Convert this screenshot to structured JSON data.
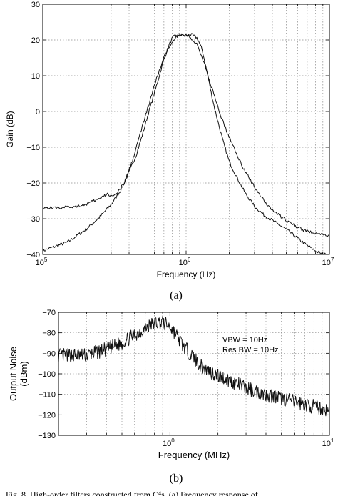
{
  "chart_data": [
    {
      "type": "line",
      "label": "(a)",
      "xlabel": "Frequency (Hz)",
      "ylabel": "Gain (dB)",
      "xscale": "log",
      "xlim": [
        100000,
        10000000
      ],
      "ylim": [
        -40,
        30
      ],
      "x_ticks": [
        {
          "value": 100000,
          "base": "10",
          "exp": "5"
        },
        {
          "value": 1000000,
          "base": "10",
          "exp": "6"
        },
        {
          "value": 10000000,
          "base": "10",
          "exp": "7"
        }
      ],
      "y_ticks": [
        {
          "value": -40,
          "label": "−40"
        },
        {
          "value": -30,
          "label": "−30"
        },
        {
          "value": -20,
          "label": "−20"
        },
        {
          "value": -10,
          "label": "−10"
        },
        {
          "value": 0,
          "label": "0"
        },
        {
          "value": 10,
          "label": "10"
        },
        {
          "value": 20,
          "label": "20"
        },
        {
          "value": 30,
          "label": "30"
        }
      ],
      "grid": true,
      "series": [
        {
          "points": [
            [
              100000,
              -39
            ],
            [
              150000,
              -36.5
            ],
            [
              200000,
              -33
            ],
            [
              250000,
              -29.5
            ],
            [
              300000,
              -26
            ],
            [
              350000,
              -22
            ],
            [
              400000,
              -17
            ],
            [
              450000,
              -12
            ],
            [
              500000,
              -6
            ],
            [
              550000,
              0
            ],
            [
              600000,
              5
            ],
            [
              650000,
              10
            ],
            [
              700000,
              14.5
            ],
            [
              750000,
              18
            ],
            [
              800000,
              20.5
            ],
            [
              850000,
              21.3
            ],
            [
              900000,
              21.5
            ],
            [
              1000000,
              21.2
            ],
            [
              1100000,
              21.4
            ],
            [
              1200000,
              20.5
            ],
            [
              1300000,
              17
            ],
            [
              1400000,
              11
            ],
            [
              1500000,
              5
            ],
            [
              1600000,
              0
            ],
            [
              1800000,
              -8
            ],
            [
              2000000,
              -14
            ],
            [
              2300000,
              -19
            ],
            [
              2600000,
              -23
            ],
            [
              3000000,
              -26.5
            ],
            [
              3500000,
              -29
            ],
            [
              4000000,
              -30.5
            ],
            [
              5000000,
              -33
            ],
            [
              6000000,
              -35.5
            ],
            [
              7000000,
              -37.5
            ],
            [
              8000000,
              -39
            ],
            [
              9000000,
              -40
            ],
            [
              10000000,
              -40
            ]
          ]
        },
        {
          "points": [
            [
              100000,
              -27
            ],
            [
              150000,
              -26.8
            ],
            [
              200000,
              -26
            ],
            [
              230000,
              -25
            ],
            [
              260000,
              -24
            ],
            [
              280000,
              -23.2
            ],
            [
              300000,
              -23.5
            ],
            [
              330000,
              -23
            ],
            [
              370000,
              -20
            ],
            [
              420000,
              -14
            ],
            [
              480000,
              -6
            ],
            [
              550000,
              2
            ],
            [
              620000,
              9
            ],
            [
              700000,
              15
            ],
            [
              780000,
              19
            ],
            [
              850000,
              21
            ],
            [
              950000,
              21.4
            ],
            [
              1050000,
              21.2
            ],
            [
              1200000,
              18.5
            ],
            [
              1350000,
              13
            ],
            [
              1500000,
              7
            ],
            [
              1700000,
              0
            ],
            [
              1900000,
              -5
            ],
            [
              2200000,
              -11
            ],
            [
              2600000,
              -17
            ],
            [
              3000000,
              -21
            ],
            [
              3500000,
              -25
            ],
            [
              4000000,
              -27.5
            ],
            [
              5000000,
              -30.5
            ],
            [
              6000000,
              -32.5
            ],
            [
              7000000,
              -33.5
            ],
            [
              8000000,
              -34
            ],
            [
              10000000,
              -35
            ]
          ]
        }
      ]
    },
    {
      "type": "line",
      "label": "(b)",
      "xlabel": "Frequency (MHz)",
      "ylabel": "Output Noise\n(dBm)",
      "xscale": "log",
      "xlim": [
        0.2,
        10
      ],
      "ylim": [
        -130,
        -70
      ],
      "x_ticks": [
        {
          "value": 1,
          "base": "10",
          "exp": "0"
        },
        {
          "value": 10,
          "base": "10",
          "exp": "1"
        }
      ],
      "y_ticks": [
        {
          "value": -130,
          "label": "−130"
        },
        {
          "value": -120,
          "label": "−120"
        },
        {
          "value": -110,
          "label": "−110"
        },
        {
          "value": -100,
          "label": "−100"
        },
        {
          "value": -90,
          "label": "−90"
        },
        {
          "value": -80,
          "label": "−80"
        },
        {
          "value": -70,
          "label": "−70"
        }
      ],
      "grid": true,
      "annotations": [
        "VBW = 10Hz",
        "Res BW = 10Hz"
      ],
      "series": [
        {
          "points": [
            [
              0.2,
              -91
            ],
            [
              0.3,
              -91
            ],
            [
              0.4,
              -88
            ],
            [
              0.5,
              -85
            ],
            [
              0.6,
              -81
            ],
            [
              0.7,
              -78
            ],
            [
              0.8,
              -75
            ],
            [
              0.9,
              -75
            ],
            [
              1.0,
              -77
            ],
            [
              1.1,
              -81
            ],
            [
              1.2,
              -86
            ],
            [
              1.4,
              -92
            ],
            [
              1.6,
              -97
            ],
            [
              2.0,
              -101
            ],
            [
              2.5,
              -104
            ],
            [
              3.0,
              -107
            ],
            [
              4.0,
              -110
            ],
            [
              5.0,
              -112
            ],
            [
              6.0,
              -113.5
            ],
            [
              7.0,
              -115
            ],
            [
              8.0,
              -116
            ],
            [
              9.0,
              -117
            ],
            [
              10.0,
              -118
            ]
          ]
        }
      ]
    }
  ],
  "figure_caption": "Fig. 8.  High-order filters constructed from C⁴s. (a) Frequency response of"
}
